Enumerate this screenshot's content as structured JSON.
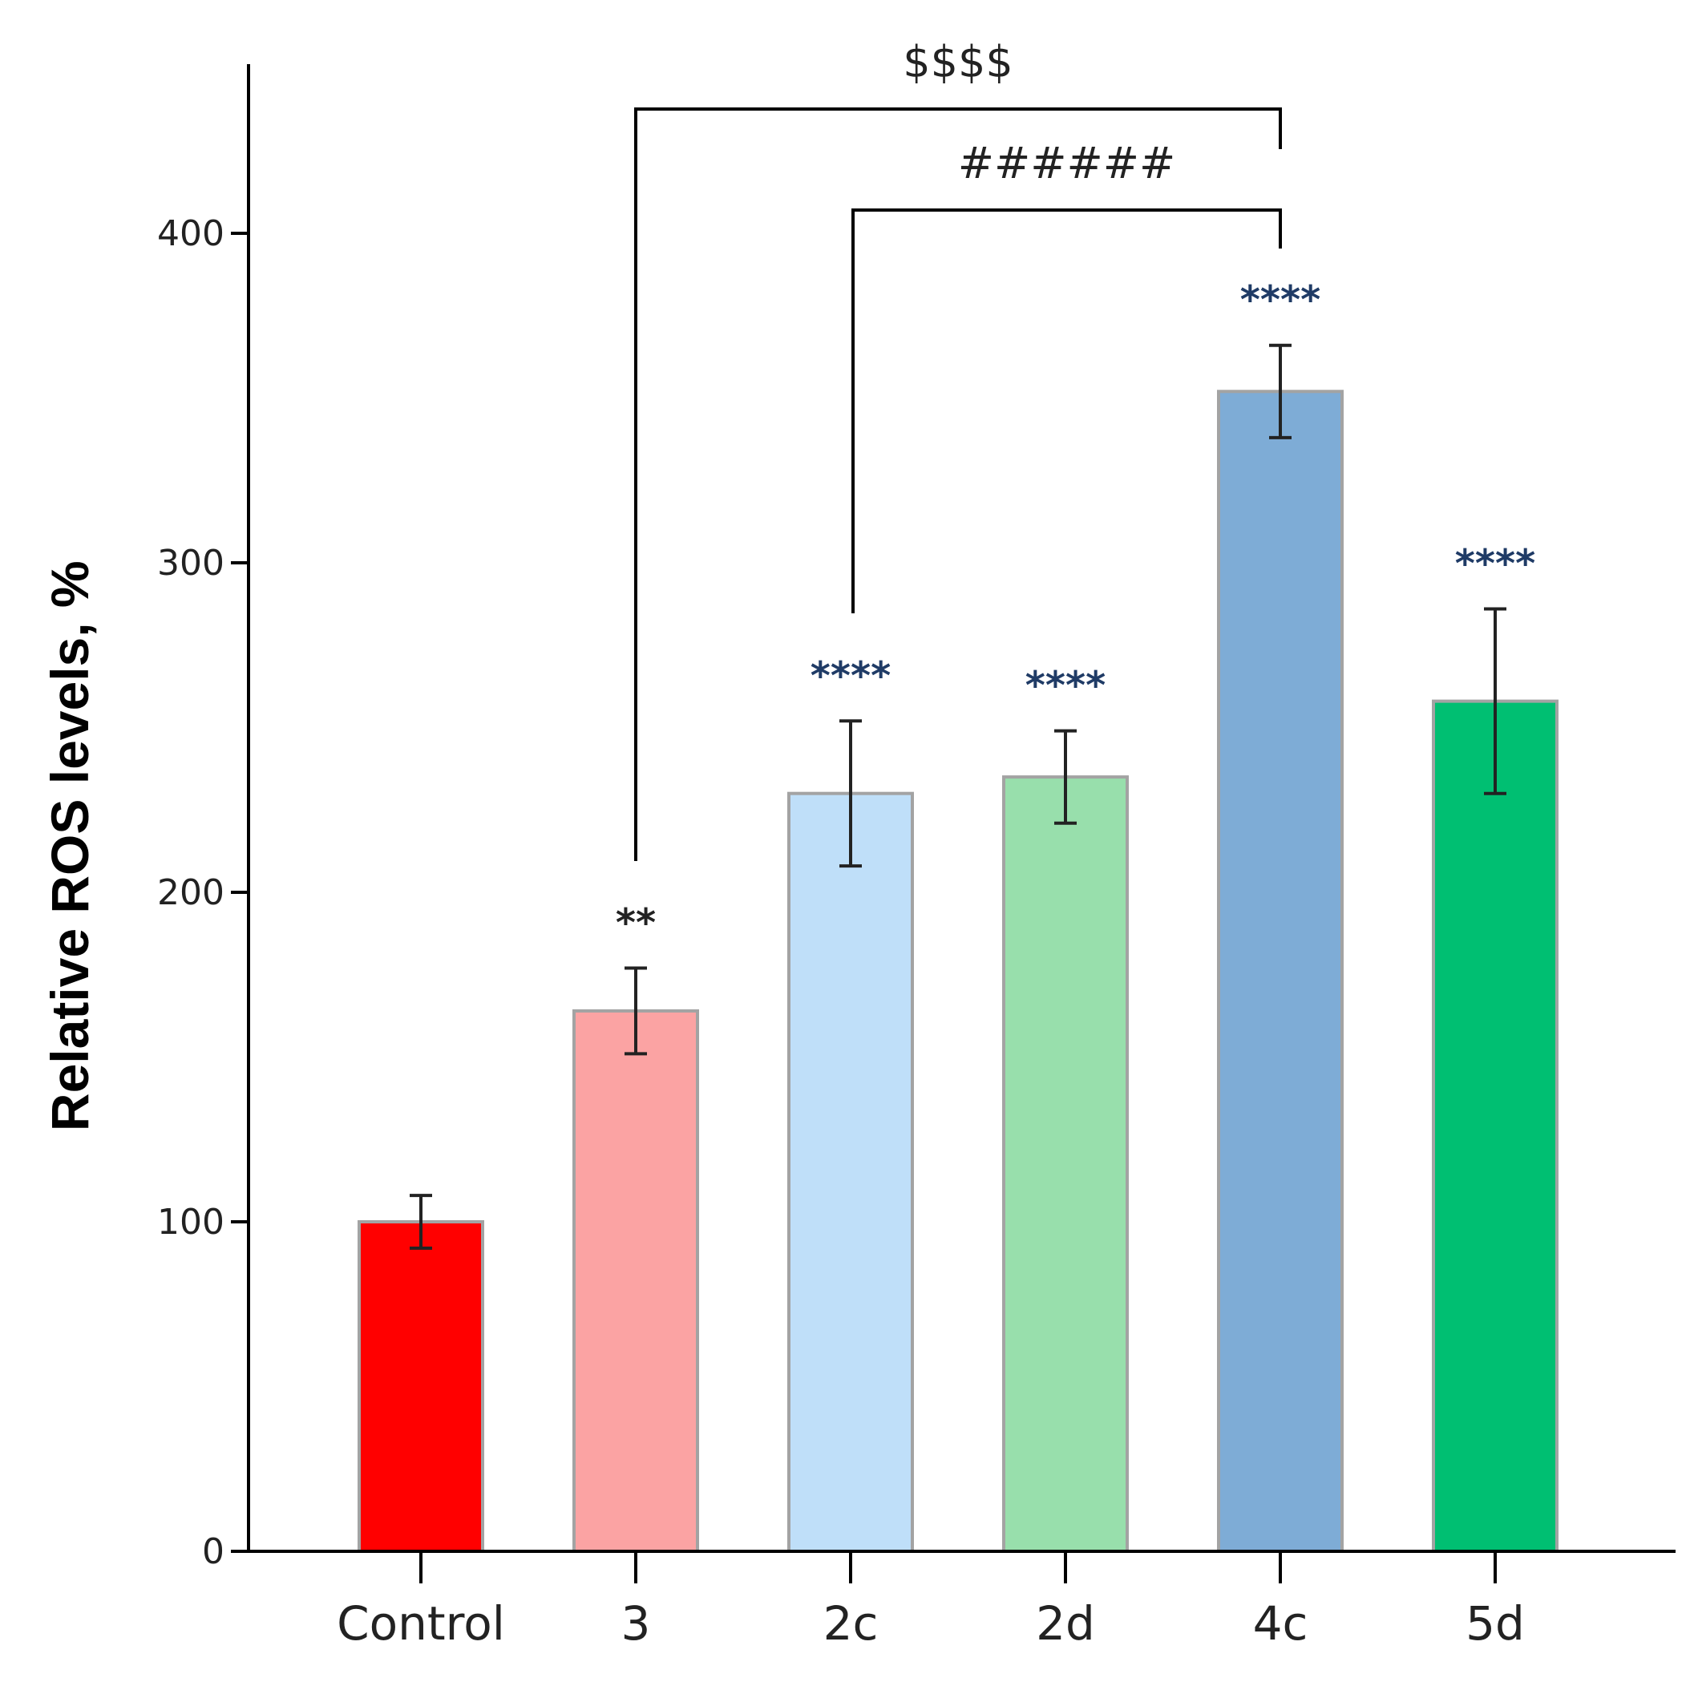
{
  "chart_data": {
    "type": "bar",
    "title": "",
    "xlabel": "",
    "ylabel": "Relative ROS levels, %",
    "ylim": [
      0,
      450
    ],
    "yticks": [
      0,
      100,
      200,
      300,
      400
    ],
    "grid": false,
    "categories": [
      "Control",
      "3",
      "2c",
      "2d",
      "4c",
      "5d"
    ],
    "values": [
      100,
      164,
      230,
      235,
      352,
      258
    ],
    "errors": [
      8,
      13,
      22,
      14,
      14,
      28
    ],
    "colors": [
      "#ff0000",
      "#fba3a3",
      "#bfdff9",
      "#98dfac",
      "#7eacd6",
      "#00bf72"
    ],
    "significance": [
      "",
      "**",
      "****",
      "****",
      "****",
      "****"
    ],
    "significance_color": "#1f3b66",
    "comparisons": [
      {
        "from": "3",
        "to": "4c",
        "label": "$$$$"
      },
      {
        "from": "2c",
        "to": "4c",
        "label": "######"
      }
    ]
  }
}
